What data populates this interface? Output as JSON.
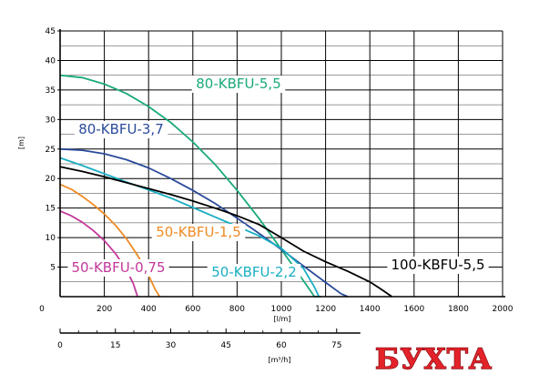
{
  "chart_data": {
    "type": "line",
    "title": "",
    "xlabel": "[l/m]",
    "ylabel": "[m]",
    "xlim": [
      0,
      2000
    ],
    "ylim": [
      0,
      45
    ],
    "x_ticks": [
      0,
      200,
      400,
      600,
      800,
      1000,
      1200,
      1400,
      1600,
      1800,
      2000
    ],
    "y_ticks": [
      5,
      10,
      15,
      20,
      25,
      30,
      35,
      40,
      45
    ],
    "grid": true,
    "secondary_x_axis": {
      "label": "[m³/h]",
      "ticks": [
        0,
        15,
        30,
        45,
        60,
        75
      ]
    },
    "series": [
      {
        "name": "80-KBFU-5,5",
        "color": "#1aa97a",
        "x": [
          0,
          100,
          200,
          300,
          400,
          500,
          600,
          700,
          800,
          900,
          1000,
          1100,
          1150,
          1180
        ],
        "y": [
          37.5,
          37.1,
          36,
          34.4,
          32.2,
          29.5,
          26.2,
          22.4,
          18,
          13.2,
          8,
          2.7,
          0,
          0
        ]
      },
      {
        "name": "80-KBFU-3,7",
        "color": "#2a4a9a",
        "x": [
          0,
          100,
          200,
          300,
          400,
          500,
          600,
          700,
          800,
          900,
          1000,
          1100,
          1200,
          1270,
          1300
        ],
        "y": [
          25,
          24.8,
          24.2,
          23.2,
          21.8,
          20,
          18,
          15.8,
          13.3,
          10.7,
          8,
          5.2,
          2.4,
          0.5,
          0
        ]
      },
      {
        "name": "50-KBFU-2,2",
        "color": "#19aec2",
        "x": [
          0,
          100,
          200,
          300,
          400,
          500,
          600,
          700,
          800,
          900,
          1000,
          1100,
          1150,
          1170
        ],
        "y": [
          23.5,
          22.2,
          20.8,
          19.4,
          18.1,
          16.7,
          15.1,
          13.5,
          11.9,
          10.3,
          8.2,
          4.8,
          1.6,
          0
        ]
      },
      {
        "name": "50-KBFU-1,5",
        "color": "#f08a24",
        "x": [
          0,
          50,
          100,
          150,
          200,
          250,
          300,
          350,
          400,
          430,
          450
        ],
        "y": [
          19,
          18.2,
          17,
          15.6,
          14,
          12.1,
          9.8,
          7,
          3.6,
          1.2,
          0
        ]
      },
      {
        "name": "50-KBFU-0,75",
        "color": "#c3399a",
        "x": [
          0,
          50,
          100,
          150,
          200,
          250,
          300,
          330,
          350
        ],
        "y": [
          14.5,
          13.7,
          12.6,
          11.2,
          9.5,
          7.3,
          4.5,
          2.3,
          0
        ]
      },
      {
        "name": "100-KBFU-5,5",
        "color": "#000000",
        "x": [
          0,
          100,
          200,
          300,
          400,
          500,
          600,
          700,
          800,
          900,
          1000,
          1100,
          1200,
          1300,
          1400,
          1450,
          1500
        ],
        "y": [
          22,
          21.2,
          20.3,
          19.3,
          18.3,
          17.3,
          16.2,
          15,
          13.7,
          12.2,
          10,
          7.7,
          5.9,
          4.3,
          2.5,
          1.3,
          0
        ]
      }
    ]
  },
  "brand": {
    "logo_text": "БУХТА",
    "color": "#e3222a"
  }
}
